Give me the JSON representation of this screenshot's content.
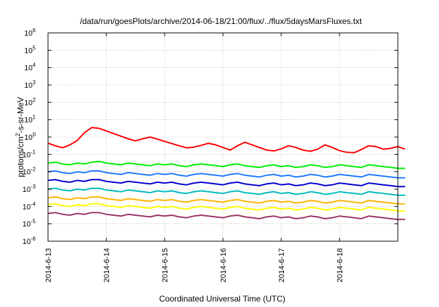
{
  "chart_data": {
    "type": "line",
    "title": "/data/run/goesPlots/archive/2014-06-18/21:00/flux/../flux/5daysMarsFluxes.txt",
    "xlabel": "Coordinated Universal Time (UTC)",
    "ylabel": {
      "prefix": "protons/cm",
      "sup": "2",
      "suffix": "-s-sr-MeV"
    },
    "yscale": "log",
    "ylim_exp": [
      -6,
      6
    ],
    "ytick_exponents": [
      -6,
      -5,
      -4,
      -3,
      -2,
      -1,
      0,
      1,
      2,
      3,
      4,
      5,
      6
    ],
    "ytick_base": "10",
    "x_range_days": [
      0,
      6.0
    ],
    "xticks": [
      {
        "day": 0,
        "label": "2014-6-13"
      },
      {
        "day": 1,
        "label": "2014-6-14"
      },
      {
        "day": 2,
        "label": "2014-6-15"
      },
      {
        "day": 3,
        "label": "2014-6-16"
      },
      {
        "day": 4,
        "label": "2014-6-17"
      },
      {
        "day": 5,
        "label": "2014-6-18"
      }
    ],
    "grid": true,
    "sample_step_days": 0.125,
    "series": [
      {
        "color": "#ff0000",
        "log10_values": [
          -0.35,
          -0.5,
          -0.62,
          -0.45,
          -0.2,
          0.25,
          0.55,
          0.5,
          0.35,
          0.2,
          0.05,
          -0.1,
          -0.22,
          -0.1,
          0.0,
          -0.12,
          -0.25,
          -0.38,
          -0.5,
          -0.62,
          -0.58,
          -0.48,
          -0.36,
          -0.45,
          -0.6,
          -0.75,
          -0.5,
          -0.3,
          -0.45,
          -0.6,
          -0.75,
          -0.8,
          -0.68,
          -0.5,
          -0.6,
          -0.75,
          -0.82,
          -0.7,
          -0.45,
          -0.6,
          -0.78,
          -0.88,
          -0.9,
          -0.72,
          -0.5,
          -0.55,
          -0.7,
          -0.65,
          -0.55,
          -0.7
        ]
      },
      {
        "color": "#00ee00",
        "log10_values": [
          -1.5,
          -1.45,
          -1.55,
          -1.6,
          -1.5,
          -1.55,
          -1.45,
          -1.4,
          -1.5,
          -1.55,
          -1.6,
          -1.5,
          -1.55,
          -1.6,
          -1.65,
          -1.55,
          -1.6,
          -1.55,
          -1.65,
          -1.7,
          -1.6,
          -1.55,
          -1.6,
          -1.65,
          -1.7,
          -1.6,
          -1.55,
          -1.65,
          -1.7,
          -1.75,
          -1.65,
          -1.6,
          -1.7,
          -1.65,
          -1.75,
          -1.7,
          -1.6,
          -1.65,
          -1.75,
          -1.7,
          -1.6,
          -1.65,
          -1.7,
          -1.75,
          -1.6,
          -1.65,
          -1.7,
          -1.75,
          -1.8,
          -1.8
        ]
      },
      {
        "color": "#1e78ff",
        "log10_values": [
          -2.0,
          -1.95,
          -2.05,
          -2.1,
          -2.0,
          -2.05,
          -1.95,
          -1.95,
          -2.05,
          -2.1,
          -2.15,
          -2.05,
          -2.1,
          -2.15,
          -2.2,
          -2.1,
          -2.15,
          -2.1,
          -2.2,
          -2.25,
          -2.15,
          -2.1,
          -2.15,
          -2.2,
          -2.25,
          -2.15,
          -2.1,
          -2.2,
          -2.25,
          -2.3,
          -2.2,
          -2.15,
          -2.25,
          -2.2,
          -2.3,
          -2.25,
          -2.15,
          -2.2,
          -2.3,
          -2.25,
          -2.15,
          -2.2,
          -2.25,
          -2.3,
          -2.15,
          -2.2,
          -2.25,
          -2.3,
          -2.35,
          -2.35
        ]
      },
      {
        "color": "#0000cc",
        "log10_values": [
          -2.5,
          -2.45,
          -2.55,
          -2.6,
          -2.5,
          -2.55,
          -2.45,
          -2.45,
          -2.55,
          -2.6,
          -2.65,
          -2.55,
          -2.6,
          -2.65,
          -2.7,
          -2.6,
          -2.65,
          -2.6,
          -2.7,
          -2.75,
          -2.65,
          -2.6,
          -2.65,
          -2.7,
          -2.75,
          -2.65,
          -2.6,
          -2.7,
          -2.75,
          -2.8,
          -2.7,
          -2.65,
          -2.75,
          -2.7,
          -2.8,
          -2.75,
          -2.65,
          -2.7,
          -2.8,
          -2.75,
          -2.65,
          -2.7,
          -2.75,
          -2.8,
          -2.65,
          -2.7,
          -2.75,
          -2.8,
          -2.85,
          -2.85
        ]
      },
      {
        "color": "#00bbbb",
        "log10_values": [
          -3.0,
          -2.95,
          -3.05,
          -3.1,
          -3.0,
          -3.05,
          -2.95,
          -2.95,
          -3.05,
          -3.1,
          -3.15,
          -3.05,
          -3.1,
          -3.15,
          -3.2,
          -3.1,
          -3.15,
          -3.1,
          -3.2,
          -3.25,
          -3.15,
          -3.1,
          -3.15,
          -3.2,
          -3.25,
          -3.15,
          -3.1,
          -3.2,
          -3.25,
          -3.3,
          -3.2,
          -3.15,
          -3.25,
          -3.2,
          -3.3,
          -3.25,
          -3.15,
          -3.2,
          -3.3,
          -3.25,
          -3.15,
          -3.2,
          -3.25,
          -3.3,
          -3.15,
          -3.2,
          -3.25,
          -3.3,
          -3.35,
          -3.35
        ]
      },
      {
        "color": "#ffb300",
        "log10_values": [
          -3.5,
          -3.45,
          -3.55,
          -3.6,
          -3.5,
          -3.55,
          -3.45,
          -3.45,
          -3.55,
          -3.6,
          -3.65,
          -3.55,
          -3.6,
          -3.65,
          -3.7,
          -3.6,
          -3.65,
          -3.6,
          -3.7,
          -3.75,
          -3.65,
          -3.6,
          -3.65,
          -3.7,
          -3.75,
          -3.65,
          -3.6,
          -3.7,
          -3.75,
          -3.8,
          -3.7,
          -3.65,
          -3.75,
          -3.7,
          -3.8,
          -3.75,
          -3.65,
          -3.7,
          -3.8,
          -3.75,
          -3.65,
          -3.7,
          -3.75,
          -3.8,
          -3.65,
          -3.7,
          -3.75,
          -3.8,
          -3.85,
          -3.85
        ]
      },
      {
        "color": "#ffff00",
        "log10_values": [
          -3.9,
          -3.85,
          -3.95,
          -4.0,
          -3.9,
          -3.95,
          -3.85,
          -3.85,
          -3.95,
          -4.0,
          -4.05,
          -3.95,
          -4.0,
          -4.05,
          -4.1,
          -4.0,
          -4.05,
          -4.0,
          -4.1,
          -4.15,
          -4.05,
          -4.0,
          -4.05,
          -4.1,
          -4.15,
          -4.05,
          -4.0,
          -4.1,
          -4.15,
          -4.2,
          -4.1,
          -4.05,
          -4.15,
          -4.1,
          -4.2,
          -4.15,
          -4.05,
          -4.1,
          -4.2,
          -4.15,
          -4.05,
          -4.1,
          -4.15,
          -4.2,
          -4.05,
          -4.1,
          -4.15,
          -4.2,
          -4.25,
          -4.25
        ]
      },
      {
        "color": "#993366",
        "log10_values": [
          -4.4,
          -4.35,
          -4.45,
          -4.5,
          -4.4,
          -4.45,
          -4.35,
          -4.35,
          -4.45,
          -4.5,
          -4.55,
          -4.45,
          -4.5,
          -4.55,
          -4.6,
          -4.5,
          -4.55,
          -4.5,
          -4.6,
          -4.65,
          -4.55,
          -4.5,
          -4.55,
          -4.6,
          -4.65,
          -4.55,
          -4.5,
          -4.6,
          -4.65,
          -4.7,
          -4.6,
          -4.55,
          -4.65,
          -4.6,
          -4.7,
          -4.65,
          -4.55,
          -4.6,
          -4.7,
          -4.65,
          -4.55,
          -4.6,
          -4.65,
          -4.7,
          -4.55,
          -4.6,
          -4.65,
          -4.7,
          -4.75,
          -4.75
        ]
      }
    ]
  }
}
